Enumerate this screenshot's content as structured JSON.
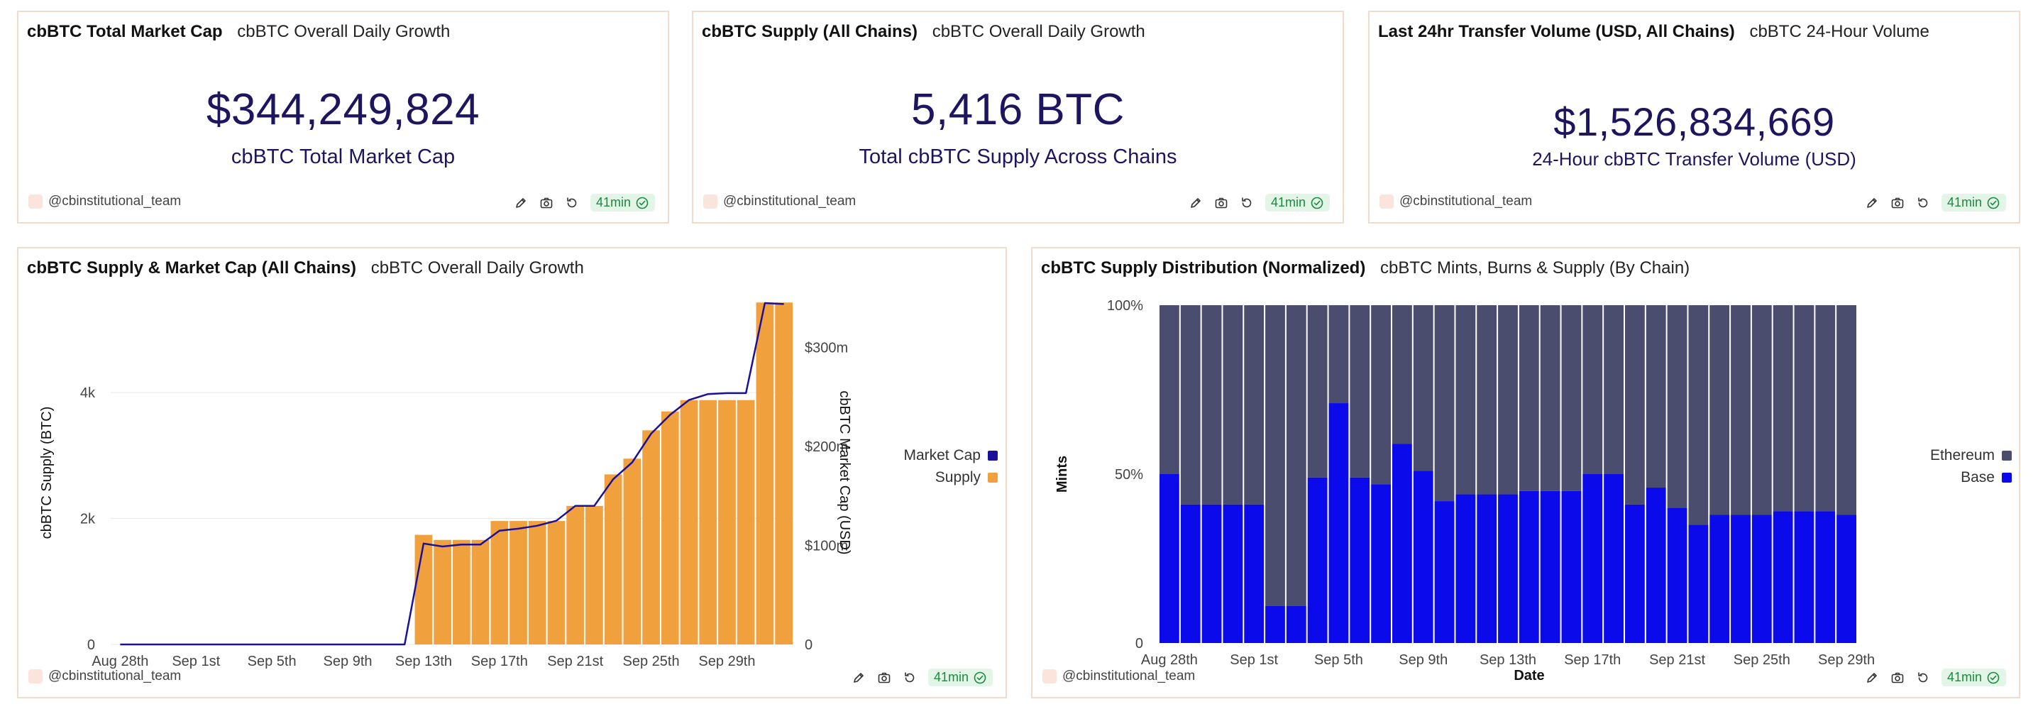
{
  "author": "@cbinstitutional_team",
  "age": "41min",
  "colors": {
    "border": "#f0dccb",
    "value_text": "#1d1560",
    "supply_bar": "#f0a03c",
    "market_cap_line": "#1a1099",
    "ethereum": "#4a4d6e",
    "base": "#0a0aea",
    "badge_bg": "#e2f5e7",
    "badge_text": "#1a8a3e"
  },
  "icons": [
    "edit-icon",
    "camera-icon",
    "refresh-icon",
    "check-circle-icon"
  ],
  "cards": {
    "market_cap": {
      "title": "cbBTC Total Market Cap",
      "subtitle": "cbBTC Overall Daily Growth",
      "value": "$344,249,824",
      "label": "cbBTC Total Market Cap"
    },
    "supply": {
      "title": "cbBTC Supply (All Chains)",
      "subtitle": "cbBTC Overall Daily Growth",
      "value": "5,416 BTC",
      "label": "Total cbBTC Supply Across Chains"
    },
    "volume": {
      "title": "Last 24hr Transfer Volume (USD, All Chains)",
      "subtitle": "cbBTC 24-Hour Volume",
      "value": "$1,526,834,669",
      "label": "24-Hour cbBTC Transfer Volume (USD)"
    },
    "supply_chart": {
      "title": "cbBTC Supply & Market Cap (All Chains)",
      "subtitle": "cbBTC Overall Daily Growth"
    },
    "distribution_chart": {
      "title": "cbBTC Supply Distribution (Normalized)",
      "subtitle": "cbBTC Mints, Burns & Supply (By Chain)"
    }
  },
  "chart_data": [
    {
      "type": "bar",
      "x_tick_labels": [
        "Aug 28th",
        "Sep 1st",
        "Sep 5th",
        "Sep 9th",
        "Sep 13th",
        "Sep 17th",
        "Sep 21st",
        "Sep 25th",
        "Sep 29th"
      ],
      "ylabel": "cbBTC Supply (BTC)",
      "y2label": "cbBTC Market Cap (USD)",
      "y_ticks": [
        "0",
        "2k",
        "4k"
      ],
      "y2_ticks": [
        "0",
        "$100m",
        "$200m",
        "$300m"
      ],
      "ylim": [
        0,
        5500
      ],
      "y2lim": [
        0,
        350000000
      ],
      "legend_position": "right",
      "start_day": "Aug 28th",
      "series": [
        {
          "name": "Supply",
          "kind": "bar",
          "values": [
            0,
            0,
            0,
            0,
            0,
            0,
            0,
            0,
            0,
            0,
            0,
            0,
            0,
            0,
            0,
            0,
            1740,
            1660,
            1660,
            1660,
            1960,
            1960,
            1960,
            1960,
            2200,
            2200,
            2700,
            2950,
            3400,
            3700,
            3880,
            3880,
            3880,
            3880,
            5430,
            5430
          ]
        },
        {
          "name": "Market Cap",
          "kind": "line",
          "values": [
            0,
            0,
            0,
            0,
            0,
            0,
            0,
            0,
            0,
            0,
            0,
            0,
            0,
            0,
            0,
            0,
            102000000,
            99000000,
            101000000,
            101000000,
            115000000,
            117000000,
            120000000,
            125000000,
            140000000,
            140000000,
            167000000,
            184000000,
            213000000,
            232000000,
            247000000,
            253000000,
            254000000,
            254000000,
            345000000,
            344000000
          ]
        }
      ]
    },
    {
      "type": "bar",
      "stacked": true,
      "normalized": true,
      "x_tick_labels": [
        "Aug 28th",
        "Sep 1st",
        "Sep 5th",
        "Sep 9th",
        "Sep 13th",
        "Sep 17th",
        "Sep 21st",
        "Sep 25th",
        "Sep 29th"
      ],
      "xlabel": "Date",
      "ylabel": "Mints",
      "y_ticks": [
        "0",
        "50%",
        "100%"
      ],
      "ylim": [
        0,
        100
      ],
      "legend_position": "right",
      "start_day": "Aug 28th",
      "series": [
        {
          "name": "Base",
          "values": [
            50,
            41,
            41,
            41,
            41,
            11,
            11,
            49,
            71,
            49,
            47,
            59,
            51,
            42,
            44,
            44,
            44,
            45,
            45,
            45,
            50,
            50,
            41,
            46,
            40,
            35,
            38,
            38,
            38,
            39,
            39,
            39,
            38
          ]
        },
        {
          "name": "Ethereum",
          "values": [
            50,
            59,
            59,
            59,
            59,
            89,
            89,
            51,
            29,
            51,
            53,
            41,
            49,
            58,
            56,
            56,
            56,
            55,
            55,
            55,
            50,
            50,
            59,
            54,
            60,
            65,
            62,
            62,
            62,
            61,
            61,
            61,
            62
          ]
        }
      ]
    }
  ]
}
